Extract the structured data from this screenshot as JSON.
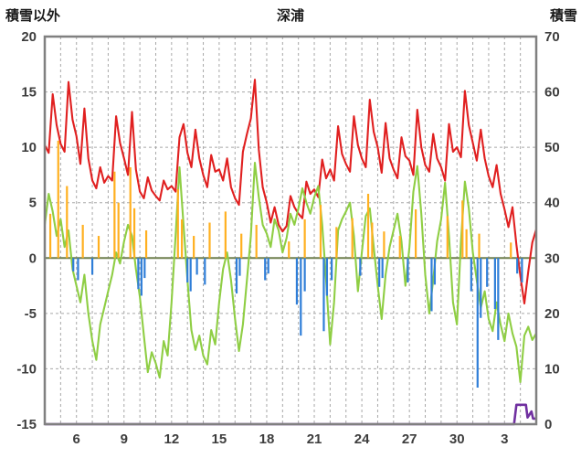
{
  "header": {
    "left_label": "積雪以外",
    "title": "深浦",
    "right_label": "積雪"
  },
  "chart_data": {
    "type": "line",
    "title": "深浦",
    "x_range": [
      0,
      31
    ],
    "x_ticks": {
      "positions": [
        2,
        5,
        8,
        11,
        14,
        17,
        20,
        23,
        26,
        29
      ],
      "labels": [
        "6",
        "9",
        "12",
        "15",
        "18",
        "21",
        "24",
        "27",
        "30",
        "3"
      ]
    },
    "left_axis": {
      "label": "積雪以外",
      "range": [
        -15,
        20
      ],
      "ticks": [
        20,
        15,
        10,
        5,
        0,
        -5,
        -10,
        -15
      ]
    },
    "right_axis": {
      "label": "積雪",
      "range": [
        0,
        70
      ],
      "ticks": [
        70,
        60,
        50,
        40,
        30,
        20,
        10,
        0
      ]
    },
    "grid": {
      "vertical_step_days": 1,
      "style": "dashed"
    },
    "colors": {
      "frame": "#808080",
      "grid": "#a8a8a8",
      "zero_line": "#6f7f4f",
      "text": "#3d3d3d",
      "title_text": "#1a1a1a",
      "background": "#ffffff"
    },
    "series": [
      {
        "name": "red-line",
        "type": "line",
        "axis": "left",
        "color": "#e02020",
        "values": [
          10.2,
          9.5,
          14.8,
          12.0,
          10.3,
          9.6,
          15.9,
          12.5,
          11.0,
          8.5,
          13.5,
          9.0,
          7.0,
          6.3,
          8.2,
          6.8,
          7.4,
          7.0,
          12.8,
          10.4,
          9.0,
          7.5,
          13.2,
          8.0,
          6.0,
          5.4,
          7.3,
          6.1,
          5.6,
          5.2,
          7.0,
          6.2,
          6.5,
          6.0,
          10.9,
          12.1,
          9.5,
          8.2,
          11.6,
          9.0,
          7.5,
          6.4,
          9.3,
          7.8,
          8.0,
          7.0,
          9.0,
          6.4,
          5.4,
          4.8,
          9.6,
          11.2,
          12.6,
          16.1,
          9.8,
          6.4,
          5.0,
          3.2,
          4.6,
          3.0,
          2.4,
          2.9,
          5.6,
          4.6,
          4.0,
          3.6,
          6.9,
          5.8,
          6.2,
          5.5,
          8.9,
          7.2,
          8.0,
          7.0,
          11.9,
          9.4,
          8.5,
          7.8,
          12.8,
          10.2,
          9.0,
          8.2,
          14.3,
          11.4,
          10.0,
          7.7,
          12.2,
          9.0,
          8.0,
          7.2,
          10.9,
          9.2,
          8.8,
          7.5,
          13.4,
          10.0,
          8.4,
          7.8,
          11.2,
          9.0,
          8.2,
          7.0,
          12.1,
          9.6,
          10.0,
          9.1,
          15.1,
          12.0,
          10.4,
          8.8,
          11.6,
          9.0,
          7.4,
          6.4,
          8.4,
          5.8,
          4.4,
          2.8,
          4.6,
          1.2,
          -1.6,
          -4.1,
          -1.2,
          1.4,
          2.6
        ]
      },
      {
        "name": "green-line",
        "type": "line",
        "axis": "left",
        "color": "#8fce44",
        "values": [
          3.0,
          5.8,
          4.2,
          2.0,
          3.5,
          1.0,
          2.5,
          -1.0,
          -2.5,
          -4.0,
          -1.5,
          -5.0,
          -7.5,
          -9.2,
          -6.0,
          -4.5,
          -3.0,
          -1.5,
          0.5,
          -0.5,
          1.5,
          3.0,
          2.0,
          -1.0,
          -3.5,
          -7.0,
          -10.3,
          -8.5,
          -9.5,
          -10.8,
          -7.5,
          -8.8,
          -4.0,
          2.0,
          8.2,
          3.0,
          -2.0,
          -6.5,
          -8.3,
          -7.0,
          -8.8,
          -9.6,
          -6.5,
          -7.8,
          -4.0,
          -1.0,
          0.5,
          -2.0,
          -5.5,
          -8.4,
          -6.0,
          -2.0,
          2.0,
          8.6,
          5.5,
          3.0,
          2.2,
          1.0,
          3.5,
          2.5,
          0.5,
          1.8,
          4.0,
          3.0,
          4.5,
          6.3,
          5.0,
          4.0,
          5.5,
          6.5,
          3.0,
          -2.0,
          -7.8,
          -4.0,
          2.5,
          3.5,
          4.2,
          5.0,
          2.0,
          -3.0,
          0.5,
          3.8,
          4.5,
          1.0,
          -2.5,
          -5.5,
          -1.5,
          1.0,
          2.5,
          4.0,
          1.5,
          -2.5,
          1.0,
          6.0,
          8.3,
          4.0,
          -1.5,
          -5.0,
          -2.0,
          1.5,
          3.5,
          6.8,
          2.0,
          -4.0,
          -6.0,
          1.5,
          6.9,
          4.5,
          0.5,
          -2.0,
          -4.5,
          -3.0,
          -5.5,
          -6.6,
          -4.0,
          -6.0,
          -7.5,
          -5.0,
          -6.8,
          -8.0,
          -11.2,
          -7.0,
          -6.2,
          -7.4,
          -6.8
        ]
      },
      {
        "name": "orange-bars",
        "type": "bar",
        "axis": "left",
        "color": "#ffb020",
        "points": [
          [
            0.35,
            4.0
          ],
          [
            0.85,
            10.6
          ],
          [
            1.4,
            6.5
          ],
          [
            2.4,
            3.0
          ],
          [
            3.4,
            2.0
          ],
          [
            4.4,
            7.8
          ],
          [
            4.65,
            5.0
          ],
          [
            5.4,
            8.2
          ],
          [
            5.65,
            4.5
          ],
          [
            6.4,
            2.5
          ],
          [
            8.4,
            6.2
          ],
          [
            8.65,
            3.5
          ],
          [
            9.4,
            2.0
          ],
          [
            10.4,
            3.2
          ],
          [
            11.4,
            4.2
          ],
          [
            12.4,
            2.2
          ],
          [
            13.35,
            3.0
          ],
          [
            15.4,
            1.5
          ],
          [
            16.4,
            3.5
          ],
          [
            17.4,
            4.8
          ],
          [
            18.4,
            2.8
          ],
          [
            19.4,
            3.6
          ],
          [
            20.4,
            5.8
          ],
          [
            20.65,
            3.2
          ],
          [
            21.4,
            2.4
          ],
          [
            22.4,
            2.0
          ],
          [
            23.4,
            4.4
          ],
          [
            25.4,
            3.8
          ],
          [
            26.35,
            5.2
          ],
          [
            26.6,
            2.6
          ],
          [
            27.4,
            2.2
          ],
          [
            29.4,
            1.4
          ]
        ]
      },
      {
        "name": "blue-bars",
        "type": "bar",
        "axis": "left",
        "color": "#2f7ed8",
        "points": [
          [
            1.8,
            -1.2
          ],
          [
            2.1,
            -2.0
          ],
          [
            3.0,
            -1.5
          ],
          [
            5.9,
            -2.8
          ],
          [
            6.1,
            -3.4
          ],
          [
            6.3,
            -1.8
          ],
          [
            9.0,
            -2.2
          ],
          [
            9.2,
            -3.0
          ],
          [
            9.6,
            -1.5
          ],
          [
            10.1,
            -2.4
          ],
          [
            12.1,
            -3.2
          ],
          [
            12.3,
            -1.6
          ],
          [
            13.9,
            -2.0
          ],
          [
            14.1,
            -1.4
          ],
          [
            15.9,
            -4.2
          ],
          [
            16.15,
            -7.0
          ],
          [
            16.4,
            -3.0
          ],
          [
            17.6,
            -6.6
          ],
          [
            17.8,
            -3.4
          ],
          [
            18.1,
            -2.0
          ],
          [
            19.9,
            -1.6
          ],
          [
            21.1,
            -2.6
          ],
          [
            21.3,
            -1.8
          ],
          [
            22.9,
            -2.2
          ],
          [
            24.4,
            -4.8
          ],
          [
            24.6,
            -2.4
          ],
          [
            26.9,
            -3.0
          ],
          [
            27.3,
            -11.7
          ],
          [
            27.5,
            -5.4
          ],
          [
            27.9,
            -2.6
          ],
          [
            28.4,
            -4.6
          ],
          [
            28.6,
            -7.4
          ],
          [
            29.8,
            -1.4
          ],
          [
            30.1,
            -2.2
          ]
        ]
      },
      {
        "name": "purple-line",
        "type": "line",
        "axis": "right",
        "color": "#7030a0",
        "points": [
          [
            0,
            0
          ],
          [
            29.6,
            0
          ],
          [
            29.75,
            3.5
          ],
          [
            30.35,
            3.5
          ],
          [
            30.45,
            1.2
          ],
          [
            30.7,
            2.3
          ],
          [
            30.8,
            1.0
          ],
          [
            31,
            1.0
          ]
        ]
      }
    ]
  }
}
